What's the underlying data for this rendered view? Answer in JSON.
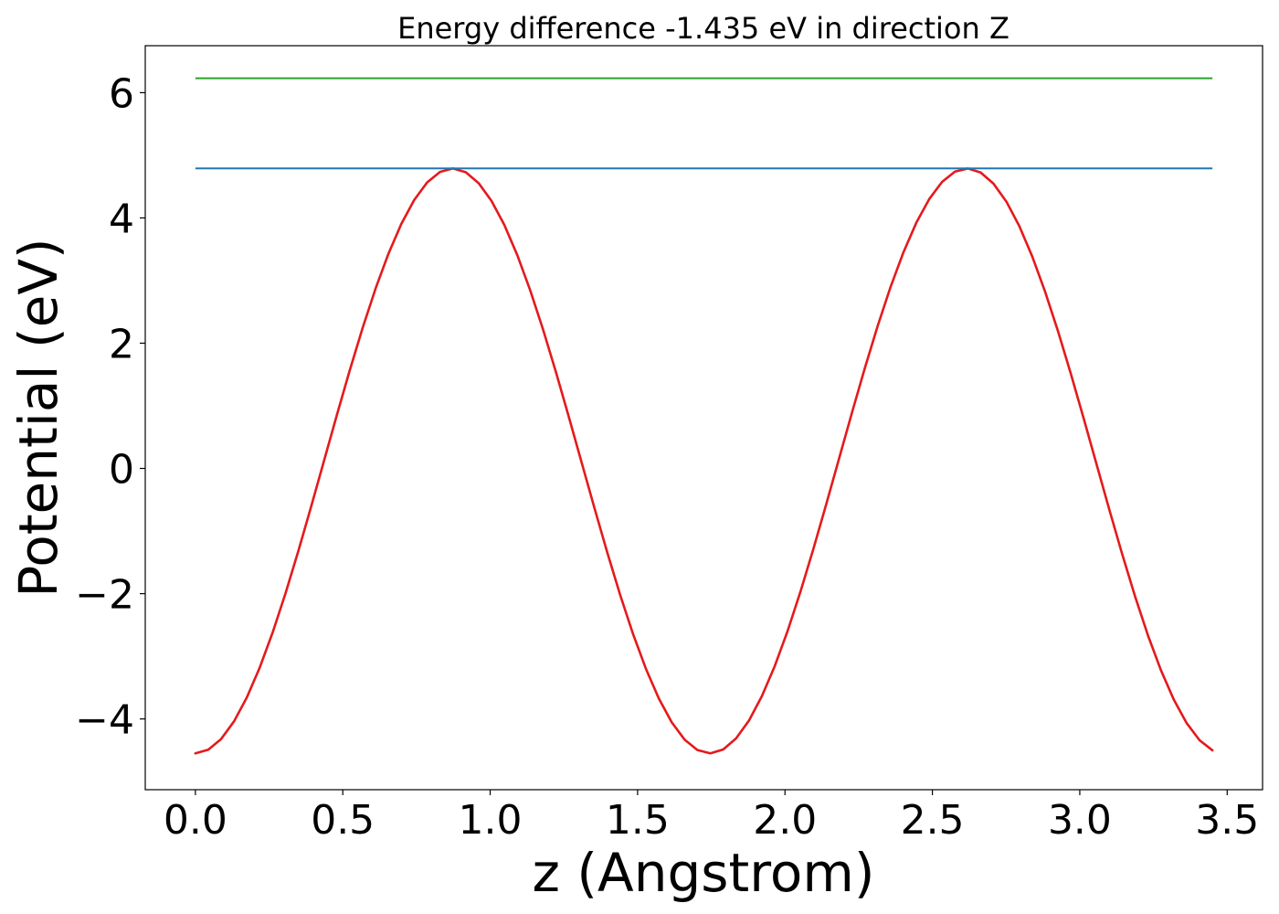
{
  "chart_data": {
    "type": "line",
    "title": "Energy difference -1.435 eV in direction Z",
    "xlabel": "z (Angstrom)",
    "ylabel": "Potential (eV)",
    "xlim": [
      -0.17,
      3.62
    ],
    "ylim": [
      -5.13,
      6.75
    ],
    "grid": false,
    "legend": "none",
    "x_ticks": [
      0.0,
      0.5,
      1.0,
      1.5,
      2.0,
      2.5,
      3.0,
      3.5
    ],
    "x_tick_labels": [
      "0.0",
      "0.5",
      "1.0",
      "1.5",
      "2.0",
      "2.5",
      "3.0",
      "3.5"
    ],
    "y_ticks": [
      -4,
      -2,
      0,
      2,
      4,
      6
    ],
    "y_tick_labels": [
      "−4",
      "−2",
      "0",
      "2",
      "4",
      "6"
    ],
    "series": [
      {
        "kind": "curve",
        "color": "#e41a1c",
        "x_start": 0.0,
        "x_end": 3.45,
        "points": 80,
        "model": "cosine",
        "mean": 0.12,
        "amplitude": 4.67,
        "period": 1.745,
        "phase_min_at": 0.0
      },
      {
        "kind": "hline",
        "color": "#1f77b4",
        "y": 4.79,
        "x_range": [
          0.0,
          3.45
        ]
      },
      {
        "kind": "hline",
        "color": "#2ca02c",
        "y": 6.23,
        "x_range": [
          0.0,
          3.45
        ]
      }
    ]
  }
}
